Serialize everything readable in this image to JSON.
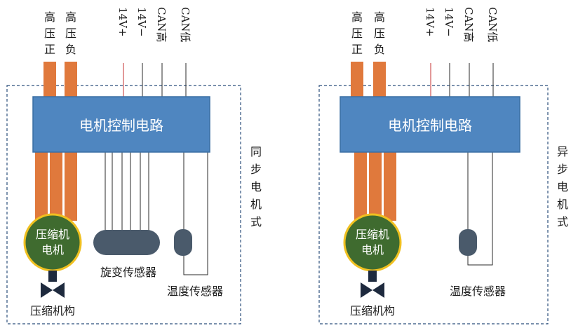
{
  "colors": {
    "box_fill": "#4f86c0",
    "box_stroke": "#3a6ea3",
    "hv_cable": "#e0793c",
    "motor_fill": "#3f6b2f",
    "motor_ring": "#f0c020",
    "sensor_fill": "#4a5a6b",
    "valve": "#1e2a3e",
    "dashed": "#2c4f7c",
    "wire": "#2a2a2a",
    "red_wire": "#c43030"
  },
  "left": {
    "hv_pos": [
      "高",
      "压",
      "正"
    ],
    "hv_neg": [
      "高",
      "压",
      "负"
    ],
    "pin_14v_plus": "14V+",
    "pin_14v_minus": "14V−",
    "pin_can_high": "CAN高",
    "pin_can_low": "CAN低",
    "control_box": "电机控制电路",
    "motor_line1": "压缩机",
    "motor_line2": "电机",
    "resolver": "旋变传感器",
    "temp_sensor": "温度传感器",
    "mechanism": "压缩机构",
    "type_label": [
      "同",
      "步",
      "电",
      "机",
      "式"
    ]
  },
  "right": {
    "hv_pos": [
      "高",
      "压",
      "正"
    ],
    "hv_neg": [
      "高",
      "压",
      "负"
    ],
    "pin_14v_plus": "14V+",
    "pin_14v_minus": "14V−",
    "pin_can_high": "CAN高",
    "pin_can_low": "CAN低",
    "control_box": "电机控制电路",
    "motor_line1": "压缩机",
    "motor_line2": "电机",
    "temp_sensor": "温度传感器",
    "mechanism": "压缩机构",
    "type_label": [
      "异",
      "步",
      "电",
      "机",
      "式"
    ]
  }
}
